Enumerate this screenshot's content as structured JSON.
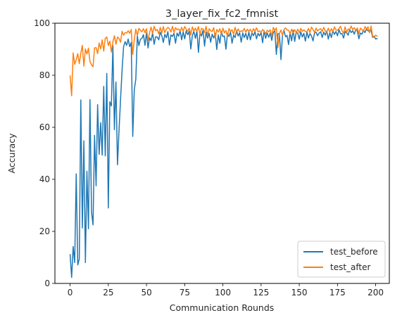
{
  "chart_data": {
    "type": "line",
    "title": "3_layer_fix_fc2_fmnist",
    "xlabel": "Communication Rounds",
    "ylabel": "Accuracy",
    "xlim": [
      -9.95,
      208.95
    ],
    "ylim": [
      0,
      100
    ],
    "xticks": [
      0,
      25,
      50,
      75,
      100,
      125,
      150,
      175,
      200
    ],
    "yticks": [
      0,
      20,
      40,
      60,
      80,
      100
    ],
    "legend_position": "lower-right",
    "grid": false,
    "series": [
      {
        "name": "test_before",
        "color": "#1f77b4",
        "values": [
          11.1,
          2.3,
          14.2,
          8.0,
          42.1,
          7.1,
          9.4,
          70.5,
          21.3,
          54.8,
          8.0,
          43.1,
          21.0,
          70.6,
          27.5,
          22.5,
          56.9,
          37.5,
          68.7,
          49.6,
          61.8,
          49.3,
          75.7,
          49.0,
          80.7,
          29.0,
          69.8,
          68.2,
          91.4,
          59.1,
          77.4,
          45.6,
          58.6,
          70.5,
          81.9,
          91.0,
          92.9,
          91.5,
          93.9,
          91.0,
          92.6,
          56.5,
          74.4,
          78.5,
          95.1,
          91.4,
          93.8,
          94.2,
          95.6,
          91.5,
          96.4,
          90.5,
          94.4,
          93.3,
          96.3,
          91.9,
          94.8,
          94.7,
          93.6,
          96.5,
          95.2,
          92.6,
          95.7,
          94.4,
          96.8,
          91.6,
          95.5,
          94.9,
          96.1,
          92.3,
          96.2,
          95.0,
          97.2,
          93.6,
          96.7,
          94.0,
          97.1,
          95.6,
          96.9,
          90.1,
          95.2,
          96.9,
          94.2,
          97.0,
          88.8,
          96.4,
          95.1,
          97.3,
          91.2,
          96.5,
          94.3,
          96.1,
          92.7,
          95.8,
          94.3,
          96.1,
          89.9,
          95.5,
          92.3,
          96.8,
          94.9,
          95.1,
          90.0,
          96.0,
          94.9,
          96.6,
          92.3,
          95.4,
          94.5,
          97.1,
          95.1,
          96.3,
          92.7,
          96.3,
          94.5,
          96.1,
          93.7,
          96.6,
          93.6,
          96.3,
          95.2,
          96.8,
          94.0,
          96.1,
          95.1,
          96.5,
          92.5,
          97.1,
          94.2,
          96.3,
          94.6,
          96.2,
          93.4,
          96.5,
          97.0,
          88.0,
          95.9,
          96.1,
          86.0,
          95.2,
          97.3,
          94.8,
          95.3,
          91.8,
          96.5,
          93.2,
          97.3,
          93.0,
          96.6,
          96.1,
          93.9,
          96.7,
          94.7,
          96.1,
          93.1,
          96.7,
          94.3,
          96.0,
          95.1,
          93.2,
          96.3,
          96.5,
          95.2,
          96.2,
          96.7,
          94.5,
          96.6,
          95.4,
          97.0,
          93.9,
          96.4,
          94.5,
          97.2,
          95.7,
          96.8,
          95.2,
          97.5,
          95.9,
          96.0,
          94.3,
          96.8,
          96.3,
          95.4,
          97.6,
          96.4,
          97.1,
          95.8,
          97.5,
          97.1,
          94.0,
          96.2,
          95.8,
          97.3,
          96.4,
          97.8,
          97.1,
          96.8,
          97.3,
          94.6,
          95.0,
          93.9,
          94.1
        ]
      },
      {
        "name": "test_after",
        "color": "#ff7f0e",
        "values": [
          79.8,
          72.1,
          88.6,
          84.2,
          86.0,
          88.3,
          84.5,
          88.4,
          91.5,
          83.5,
          90.1,
          88.2,
          90.4,
          85.3,
          84.0,
          83.3,
          90.5,
          90.6,
          88.3,
          92.4,
          90.1,
          93.6,
          89.3,
          94.2,
          94.7,
          91.4,
          93.1,
          88.9,
          92.9,
          95.2,
          91.9,
          94.7,
          94.1,
          92.7,
          96.9,
          95.4,
          96.4,
          96.2,
          97.1,
          96.1,
          97.6,
          88.0,
          93.7,
          97.7,
          95.3,
          98.0,
          97.3,
          96.7,
          97.9,
          96.4,
          97.9,
          93.4,
          96.3,
          98.5,
          96.0,
          98.8,
          97.1,
          97.6,
          95.9,
          98.4,
          96.2,
          98.7,
          96.4,
          97.7,
          98.4,
          97.9,
          96.6,
          98.8,
          96.4,
          98.3,
          97.5,
          97.8,
          96.9,
          98.4,
          96.9,
          98.7,
          97.7,
          96.9,
          98.1,
          95.5,
          98.6,
          97.0,
          98.1,
          96.9,
          98.7,
          95.6,
          98.0,
          97.8,
          96.4,
          98.8,
          95.3,
          97.9,
          97.1,
          96.8,
          98.3,
          94.4,
          97.6,
          96.6,
          97.9,
          95.7,
          98.1,
          96.3,
          97.2,
          94.8,
          98.0,
          96.8,
          97.5,
          95.7,
          98.4,
          96.5,
          97.8,
          96.6,
          97.1,
          96.8,
          98.0,
          96.5,
          97.7,
          96.8,
          97.7,
          96.3,
          97.9,
          96.9,
          98.2,
          96.7,
          97.1,
          96.4,
          97.6,
          96.9,
          95.9,
          97.3,
          96.7,
          97.5,
          94.9,
          98.4,
          97.2,
          98.2,
          90.7,
          96.0,
          97.4,
          95.3,
          97.6,
          98.2,
          97.4,
          97.3,
          95.9,
          97.7,
          96.2,
          97.5,
          96.4,
          97.7,
          96.3,
          98.0,
          96.9,
          97.5,
          96.8,
          96.7,
          98.0,
          96.4,
          98.5,
          97.6,
          96.4,
          98.1,
          97.0,
          97.6,
          97.9,
          96.8,
          98.4,
          97.0,
          96.5,
          98.1,
          96.6,
          97.9,
          96.7,
          98.6,
          97.4,
          97.3,
          97.9,
          98.8,
          97.1,
          96.1,
          98.6,
          96.5,
          97.8,
          97.5,
          98.9,
          97.5,
          98.3,
          97.1,
          98.2,
          96.0,
          98.1,
          97.6,
          96.7,
          98.7,
          97.8,
          98.6,
          96.3,
          98.9,
          95.1,
          94.5,
          95.4,
          95.0
        ]
      }
    ]
  }
}
